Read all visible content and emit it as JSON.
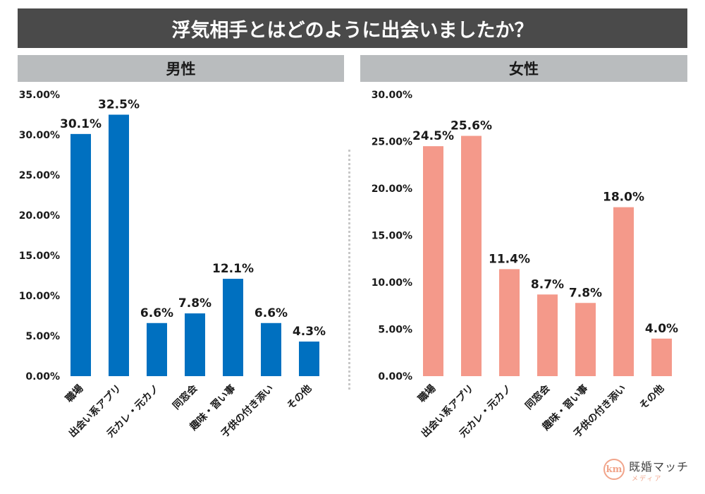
{
  "title": "浮気相手とはどのように出会いましたか？",
  "logo": {
    "mark": "km",
    "name": "既婚マッチ",
    "sub": "メディア"
  },
  "colors": {
    "male": "#0070c0",
    "female": "#f4998a"
  },
  "chart_data": [
    {
      "type": "bar",
      "title": "男性",
      "categories": [
        "職場",
        "出会い系アプリ",
        "元カレ・元カノ",
        "同窓会",
        "趣味・習い事",
        "子供の付き添い",
        "その他"
      ],
      "values": [
        30.1,
        32.5,
        6.6,
        7.8,
        12.1,
        6.6,
        4.3
      ],
      "data_labels": [
        "30.1%",
        "32.5%",
        "6.6%",
        "7.8%",
        "12.1%",
        "6.6%",
        "4.3%"
      ],
      "yticks": [
        "0.00%",
        "5.00%",
        "10.00%",
        "15.00%",
        "20.00%",
        "25.00%",
        "30.00%",
        "35.00%"
      ],
      "ylim": [
        0,
        35
      ],
      "xlabel": "",
      "ylabel": "",
      "grid": false,
      "legend": "none"
    },
    {
      "type": "bar",
      "title": "女性",
      "categories": [
        "職場",
        "出会い系アプリ",
        "元カレ・元カノ",
        "同窓会",
        "趣味・習い事",
        "子供の付き添い",
        "その他"
      ],
      "values": [
        24.5,
        25.6,
        11.4,
        8.7,
        7.8,
        18.0,
        4.0
      ],
      "data_labels": [
        "24.5%",
        "25.6%",
        "11.4%",
        "8.7%",
        "7.8%",
        "18.0%",
        "4.0%"
      ],
      "yticks": [
        "0.00%",
        "5.00%",
        "10.00%",
        "15.00%",
        "20.00%",
        "25.00%",
        "30.00%"
      ],
      "ylim": [
        0,
        30
      ],
      "xlabel": "",
      "ylabel": "",
      "grid": false,
      "legend": "none"
    }
  ]
}
